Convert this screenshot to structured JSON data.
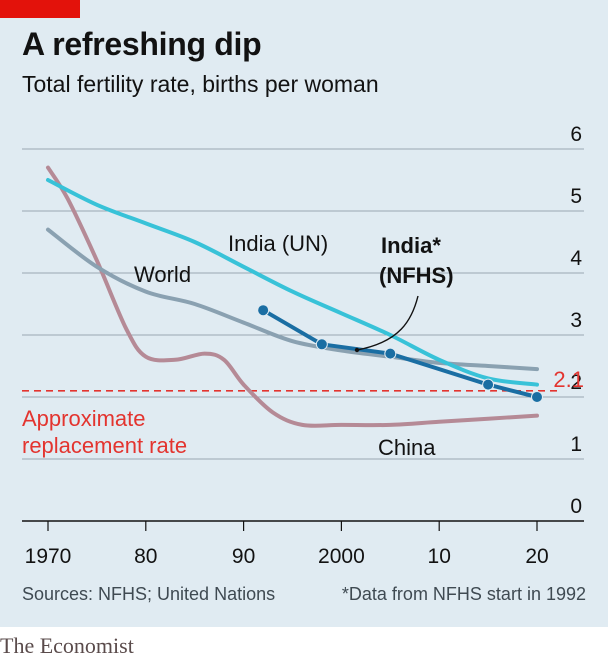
{
  "header": {
    "title": "A refreshing dip",
    "subtitle": "Total fertility rate, births per woman"
  },
  "footer": {
    "sources": "Sources: NFHS; United Nations",
    "footnote": "*Data from NFHS start in 1992",
    "brand": "The Economist"
  },
  "colors": {
    "background": "#e0ebf2",
    "india_un": "#38c2d8",
    "india_nfhs": "#1a6ea3",
    "world": "#8aa1b1",
    "china": "#b58a96",
    "replacement": "#e3342f",
    "accent": "#e3120b"
  },
  "chart_data": {
    "type": "line",
    "title": "A refreshing dip",
    "ylabel": "Total fertility rate, births per woman",
    "xlim": [
      1970,
      2020
    ],
    "ylim": [
      0,
      6
    ],
    "y_ticks": [
      0,
      1,
      2,
      3,
      4,
      5,
      6
    ],
    "x_ticks": [
      1970,
      1980,
      1990,
      2000,
      2010,
      2020
    ],
    "x_tick_labels": [
      "1970",
      "80",
      "90",
      "2000",
      "10",
      "20"
    ],
    "grid": "horizontal",
    "series": [
      {
        "name": "India (UN)",
        "x": [
          1970,
          1975,
          1980,
          1985,
          1990,
          1995,
          2000,
          2005,
          2010,
          2015,
          2020
        ],
        "y": [
          5.5,
          5.1,
          4.8,
          4.5,
          4.1,
          3.7,
          3.35,
          3.0,
          2.6,
          2.3,
          2.2
        ]
      },
      {
        "name": "India* (NFHS)",
        "x": [
          1992,
          1998,
          2005,
          2015,
          2020
        ],
        "y": [
          3.4,
          2.85,
          2.7,
          2.2,
          2.0
        ]
      },
      {
        "name": "World",
        "x": [
          1970,
          1975,
          1980,
          1985,
          1990,
          1995,
          2000,
          2005,
          2010,
          2015,
          2020
        ],
        "y": [
          4.7,
          4.1,
          3.7,
          3.5,
          3.2,
          2.9,
          2.75,
          2.65,
          2.55,
          2.5,
          2.45
        ]
      },
      {
        "name": "China",
        "x": [
          1970,
          1972,
          1975,
          1978,
          1980,
          1983,
          1986,
          1988,
          1990,
          1993,
          1996,
          2000,
          2005,
          2010,
          2015,
          2020
        ],
        "y": [
          5.7,
          5.2,
          4.2,
          3.1,
          2.65,
          2.6,
          2.7,
          2.6,
          2.2,
          1.75,
          1.55,
          1.55,
          1.55,
          1.6,
          1.65,
          1.7
        ]
      }
    ],
    "reference_line": {
      "value": 2.1,
      "label": "2.1"
    },
    "annotations": {
      "replacement_line1": "Approximate",
      "replacement_line2": "replacement rate",
      "world": "World",
      "india_un": "India (UN)",
      "india_nfhs_line1": "India*",
      "india_nfhs_line2": "(NFHS)",
      "china": "China"
    }
  }
}
